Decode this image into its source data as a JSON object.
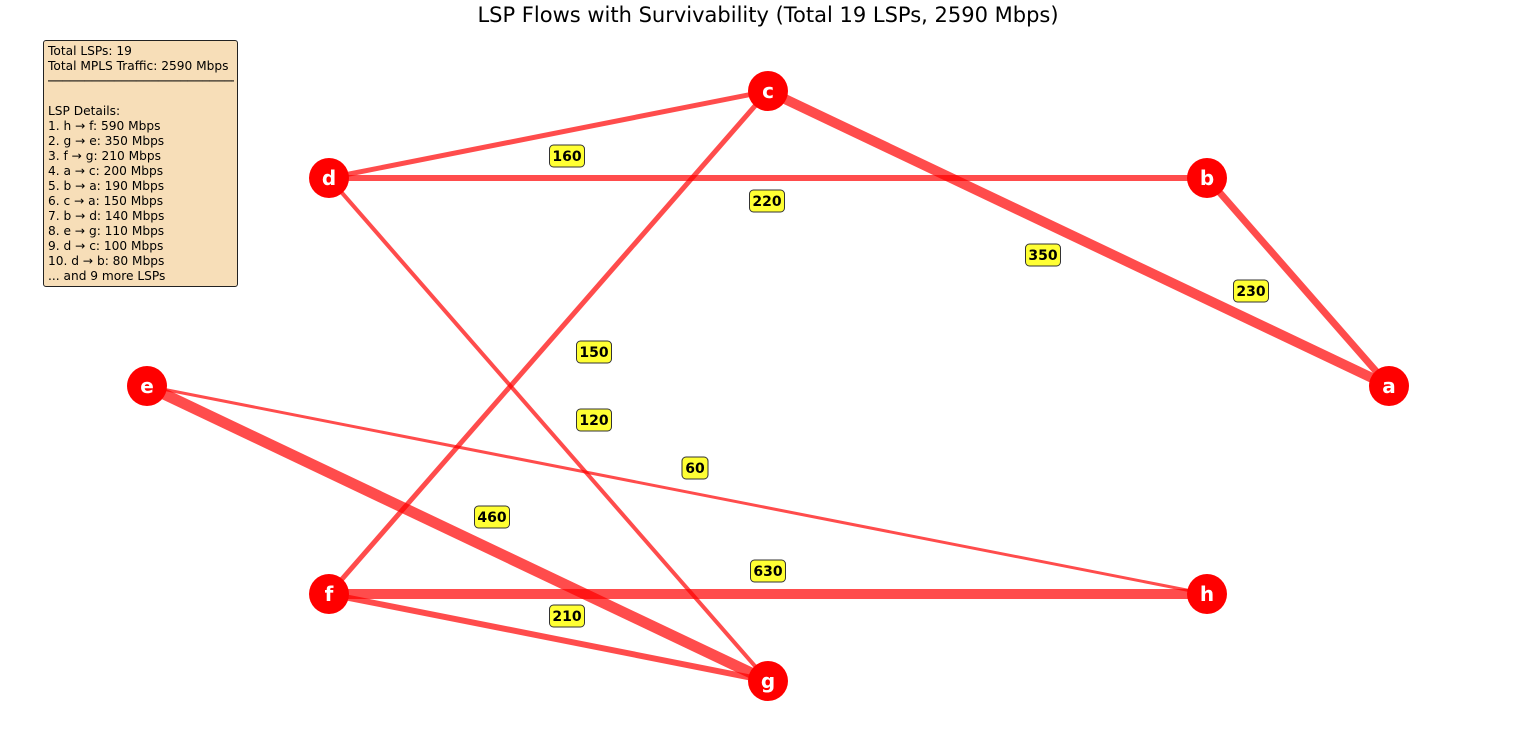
{
  "title": "LSP Flows with Survivability (Total 19 LSPs, 2590 Mbps)",
  "info": {
    "total_lsps": "Total LSPs: 19",
    "total_traffic": "Total MPLS Traffic: 2590 Mbps",
    "separator": "──────────────────────────",
    "details_header": "LSP Details:",
    "details": [
      "1. h → f: 590 Mbps",
      "2. g → e: 350 Mbps",
      "3. f → g: 210 Mbps",
      "4. a → c: 200 Mbps",
      "5. b → a: 190 Mbps",
      "6. c → a: 150 Mbps",
      "7. b → d: 140 Mbps",
      "8. e → g: 110 Mbps",
      "9. d → c: 100 Mbps",
      "10. d → b: 80 Mbps"
    ],
    "more": "... and 9 more LSPs"
  },
  "colors": {
    "node": "#ff0000",
    "edge": "#ff0000",
    "label_bg": "#ffff33",
    "info_bg": "#f7deb8"
  },
  "nodes": [
    {
      "id": "a",
      "label": "a"
    },
    {
      "id": "b",
      "label": "b"
    },
    {
      "id": "c",
      "label": "c"
    },
    {
      "id": "d",
      "label": "d"
    },
    {
      "id": "e",
      "label": "e"
    },
    {
      "id": "f",
      "label": "f"
    },
    {
      "id": "g",
      "label": "g"
    },
    {
      "id": "h",
      "label": "h"
    }
  ],
  "edges": [
    {
      "from": "f",
      "to": "h",
      "label": "630"
    },
    {
      "from": "e",
      "to": "g",
      "label": "460"
    },
    {
      "from": "c",
      "to": "a",
      "label": "350"
    },
    {
      "from": "b",
      "to": "a",
      "label": "230"
    },
    {
      "from": "d",
      "to": "b",
      "label": "220"
    },
    {
      "from": "f",
      "to": "g",
      "label": "210"
    },
    {
      "from": "d",
      "to": "c",
      "label": "160"
    },
    {
      "from": "c",
      "to": "f",
      "label": "150"
    },
    {
      "from": "d",
      "to": "g",
      "label": "120"
    },
    {
      "from": "e",
      "to": "h",
      "label": "60"
    }
  ]
}
